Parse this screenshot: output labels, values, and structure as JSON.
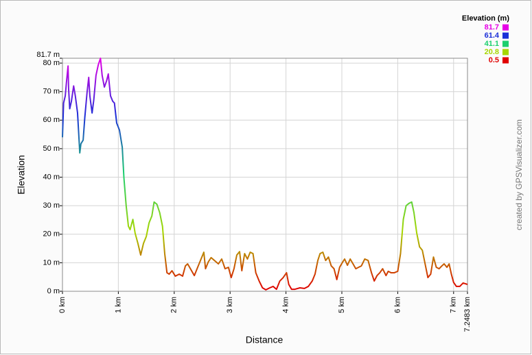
{
  "chart_data": {
    "type": "line",
    "x_label": "Distance",
    "y_label": "Elevation",
    "credit": "created by GPSVisualizer.com",
    "legend_title": "Elevation (m)",
    "color_scale": [
      {
        "value": 81.7,
        "color": "#e600e6"
      },
      {
        "value": 61.4,
        "color": "#1c2fd8"
      },
      {
        "value": 41.1,
        "color": "#1ccf6e"
      },
      {
        "value": 20.8,
        "color": "#a6d600"
      },
      {
        "value": 0.5,
        "color": "#e00000"
      }
    ],
    "xlim": [
      0,
      7.2483
    ],
    "ylim": [
      0,
      81.7
    ],
    "xticks": [
      {
        "value": 0,
        "label": "0 km"
      },
      {
        "value": 1,
        "label": "1 km"
      },
      {
        "value": 2,
        "label": "2 km"
      },
      {
        "value": 3,
        "label": "3 km"
      },
      {
        "value": 4,
        "label": "4 km"
      },
      {
        "value": 5,
        "label": "5 km"
      },
      {
        "value": 6,
        "label": "6 km"
      },
      {
        "value": 7,
        "label": "7 km"
      },
      {
        "value": 7.2483,
        "label": "7.2483 km"
      }
    ],
    "yticks": [
      {
        "value": 0,
        "label": "0 m"
      },
      {
        "value": 10,
        "label": "10 m"
      },
      {
        "value": 20,
        "label": "20 m"
      },
      {
        "value": 30,
        "label": "30 m"
      },
      {
        "value": 40,
        "label": "40 m"
      },
      {
        "value": 50,
        "label": "50 m"
      },
      {
        "value": 60,
        "label": "60 m"
      },
      {
        "value": 70,
        "label": "70 m"
      },
      {
        "value": 80,
        "label": "80 m"
      },
      {
        "value": 81.7,
        "label": "81.7 m"
      }
    ],
    "grid": true,
    "x": [
      0,
      0.02,
      0.05,
      0.07,
      0.1,
      0.11,
      0.13,
      0.16,
      0.2,
      0.23,
      0.27,
      0.31,
      0.33,
      0.37,
      0.4,
      0.44,
      0.47,
      0.49,
      0.53,
      0.56,
      0.6,
      0.64,
      0.68,
      0.71,
      0.75,
      0.79,
      0.82,
      0.86,
      0.9,
      0.93,
      0.97,
      1.02,
      1.07,
      1.1,
      1.14,
      1.18,
      1.21,
      1.26,
      1.3,
      1.35,
      1.4,
      1.45,
      1.5,
      1.55,
      1.6,
      1.64,
      1.69,
      1.74,
      1.79,
      1.83,
      1.87,
      1.91,
      1.96,
      2.02,
      2.09,
      2.15,
      2.2,
      2.24,
      2.29,
      2.36,
      2.42,
      2.48,
      2.53,
      2.56,
      2.61,
      2.66,
      2.72,
      2.79,
      2.85,
      2.91,
      2.97,
      3.02,
      3.07,
      3.12,
      3.17,
      3.21,
      3.26,
      3.31,
      3.36,
      3.41,
      3.46,
      3.52,
      3.58,
      3.64,
      3.71,
      3.77,
      3.83,
      3.89,
      3.95,
      4.01,
      4.05,
      4.1,
      4.16,
      4.25,
      4.33,
      4.4,
      4.47,
      4.52,
      4.57,
      4.61,
      4.66,
      4.71,
      4.76,
      4.81,
      4.86,
      4.91,
      4.96,
      5.01,
      5.05,
      5.1,
      5.15,
      5.2,
      5.25,
      5.3,
      5.35,
      5.41,
      5.47,
      5.53,
      5.58,
      5.63,
      5.68,
      5.73,
      5.79,
      5.83,
      5.88,
      5.94,
      6,
      6.05,
      6.1,
      6.15,
      6.2,
      6.25,
      6.29,
      6.34,
      6.39,
      6.44,
      6.49,
      6.54,
      6.59,
      6.64,
      6.69,
      6.74,
      6.79,
      6.83,
      6.88,
      6.92,
      6.96,
      7,
      7.05,
      7.11,
      7.17,
      7.2483
    ],
    "values": [
      54,
      66,
      68.5,
      73,
      79,
      71,
      64,
      66.6,
      72,
      68.5,
      62.5,
      48.5,
      51.7,
      53,
      61,
      69.7,
      75,
      68.5,
      62.5,
      67,
      75.7,
      79.3,
      81.7,
      75.7,
      71.6,
      73.8,
      76.2,
      68.5,
      66.6,
      66,
      59,
      56.5,
      50.5,
      39.7,
      30,
      22.8,
      21.6,
      25.2,
      20.4,
      16.8,
      12.7,
      16.8,
      19.2,
      24,
      26.4,
      31.3,
      30.5,
      27.6,
      22.8,
      13.2,
      6.5,
      6,
      7.2,
      5.3,
      6,
      5.3,
      8.9,
      9.6,
      7.9,
      5.5,
      8.4,
      11.3,
      13.7,
      7.9,
      10.3,
      11.8,
      10.8,
      9.6,
      11.3,
      7.9,
      8.4,
      4.8,
      7.9,
      12.7,
      13.9,
      7.2,
      13.2,
      11.3,
      13.7,
      13.2,
      6.5,
      3.6,
      1.2,
      0.5,
      1.2,
      1.7,
      0.7,
      3.6,
      4.8,
      6.5,
      2.4,
      0.7,
      0.7,
      1.2,
      1,
      1.7,
      3.6,
      6,
      10.8,
      13.2,
      13.7,
      10.8,
      12,
      8.9,
      7.9,
      4.1,
      8.4,
      10.1,
      11.3,
      9.1,
      11.3,
      9.6,
      7.9,
      8.4,
      8.9,
      11.3,
      10.8,
      6.5,
      3.6,
      5.5,
      6.5,
      7.9,
      5.5,
      7,
      6.5,
      6.5,
      7,
      13.2,
      25.2,
      30,
      30.8,
      31.3,
      27.6,
      20.4,
      15.6,
      14.4,
      9.6,
      4.8,
      6,
      12,
      8.4,
      7.9,
      8.9,
      9.6,
      8.4,
      9.6,
      6,
      3.1,
      1.7,
      1.7,
      2.9,
      2.4
    ]
  }
}
